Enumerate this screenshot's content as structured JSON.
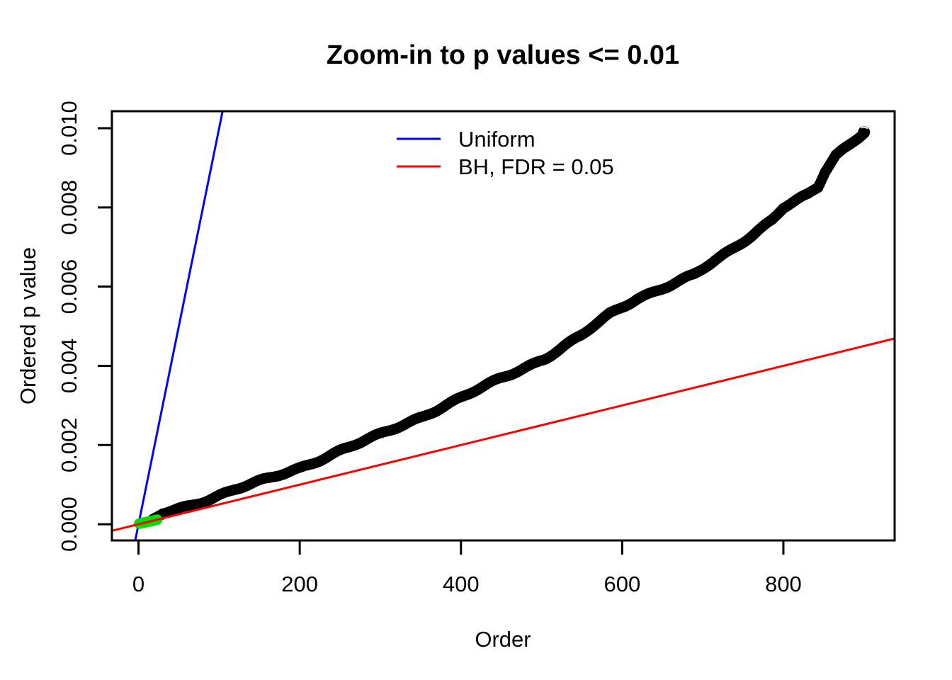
{
  "figure": {
    "background": "#FFFFFF",
    "foreground": "#000000"
  },
  "chart_data": {
    "type": "scatter",
    "title": "Zoom-in to p values <= 0.01",
    "xlabel": "Order",
    "ylabel": "Ordered p value",
    "xlim": [
      -33,
      938
    ],
    "ylim": [
      -0.00041,
      0.01043
    ],
    "grid": false,
    "x_ticks": {
      "values": [
        0,
        200,
        400,
        600,
        800
      ],
      "labels": [
        "0",
        "200",
        "400",
        "600",
        "800"
      ]
    },
    "y_ticks": {
      "values": [
        0.0,
        0.002,
        0.004,
        0.006,
        0.008,
        0.01
      ],
      "labels": [
        "0.000",
        "0.002",
        "0.004",
        "0.006",
        "0.008",
        "0.010"
      ]
    },
    "legend": {
      "position": "top-center",
      "entries": [
        {
          "label": "Uniform",
          "color": "#0000FF"
        },
        {
          "label": "BH, FDR = 0.05",
          "color": "#FF0000"
        }
      ]
    },
    "reference_lines": [
      {
        "name": "uniform-expectation",
        "label": "Uniform",
        "color": "#0000FF",
        "p_per_order_slope": 0.0001,
        "intercept": 0
      },
      {
        "name": "bh-threshold",
        "label": "BH, FDR = 0.05",
        "color": "#FF0000",
        "p_per_order_slope": 5e-06,
        "intercept": 0
      }
    ],
    "series": [
      {
        "name": "ordered-p-values",
        "marker": "circle",
        "color": "#000000",
        "marker_radius": 7.5,
        "points": [
          [
            18,
            9e-05
          ],
          [
            30,
            0.00026
          ],
          [
            60,
            0.00044
          ],
          [
            90,
            0.00066
          ],
          [
            120,
            0.0009
          ],
          [
            160,
            0.00115
          ],
          [
            200,
            0.00142
          ],
          [
            250,
            0.00185
          ],
          [
            300,
            0.00225
          ],
          [
            350,
            0.0027
          ],
          [
            390,
            0.0031
          ],
          [
            450,
            0.0037
          ],
          [
            505,
            0.0042
          ],
          [
            549,
            0.00475
          ],
          [
            585,
            0.0053
          ],
          [
            619,
            0.0057
          ],
          [
            655,
            0.006
          ],
          [
            689,
            0.0063
          ],
          [
            725,
            0.0068
          ],
          [
            760,
            0.0073
          ],
          [
            786,
            0.0077
          ],
          [
            800,
            0.008
          ],
          [
            830,
            0.0083
          ],
          [
            843,
            0.0085
          ],
          [
            852,
            0.0089
          ],
          [
            865,
            0.0093
          ],
          [
            883,
            0.0096
          ],
          [
            900,
            0.0099
          ]
        ]
      },
      {
        "name": "bh-significant",
        "marker": "circle",
        "color": "#00DD00",
        "marker_radius": 7.5,
        "points": [
          [
            1,
            3e-06
          ],
          [
            8,
            3e-05
          ],
          [
            15,
            6e-05
          ],
          [
            20,
            9e-05
          ],
          [
            23,
            0.00011
          ]
        ]
      }
    ]
  }
}
